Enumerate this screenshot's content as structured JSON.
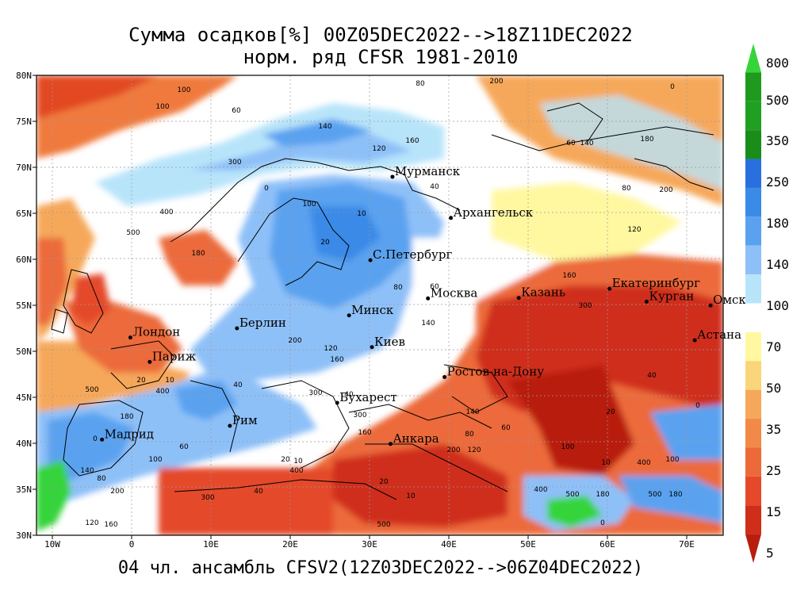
{
  "title_line1": "Сумма осадков[%] 00Z05DEC2022-->18Z11DEC2022",
  "title_line2": "норм. ряд CFSR 1981-2010",
  "footer": "04 чл. ансамбль CFSV2(12Z03DEC2022-->06Z04DEC2022)",
  "lat_labels": [
    "80N",
    "75N",
    "70N",
    "65N",
    "60N",
    "55N",
    "50N",
    "45N",
    "40N",
    "35N",
    "30N"
  ],
  "lon_labels": [
    "10W",
    "0",
    "10E",
    "20E",
    "30E",
    "40E",
    "50E",
    "60E",
    "70E"
  ],
  "colorbar": {
    "labels": [
      "800",
      "500",
      "350",
      "250",
      "180",
      "140",
      "100",
      "70",
      "50",
      "35",
      "25",
      "15",
      "5"
    ],
    "colors": [
      "#35d43a",
      "#1f9a1f",
      "#20a020",
      "#1a8c1a",
      "#2a6fe0",
      "#3a8ae8",
      "#5aa2f0",
      "#8ec0f8",
      "#b8e4fa",
      "#ffffff",
      "#fff8a0",
      "#fbd57a",
      "#f6a85a",
      "#f18a48",
      "#ec6a3a",
      "#e44a2a",
      "#cf2e1a",
      "#b81e10"
    ]
  },
  "cities": [
    {
      "name": "Мурманск",
      "lon": 33.1,
      "lat": 68.97
    },
    {
      "name": "Архангельск",
      "lon": 40.5,
      "lat": 64.5
    },
    {
      "name": "С.Петербург",
      "lon": 30.3,
      "lat": 59.9
    },
    {
      "name": "Москва",
      "lon": 37.6,
      "lat": 55.75
    },
    {
      "name": "Казань",
      "lon": 49.1,
      "lat": 55.8
    },
    {
      "name": "Екатеринбург",
      "lon": 60.6,
      "lat": 56.8
    },
    {
      "name": "Курган",
      "lon": 65.3,
      "lat": 55.4
    },
    {
      "name": "Омск",
      "lon": 73.4,
      "lat": 54.98
    },
    {
      "name": "Астана",
      "lon": 71.4,
      "lat": 51.2
    },
    {
      "name": "Минск",
      "lon": 27.6,
      "lat": 53.9
    },
    {
      "name": "Киев",
      "lon": 30.5,
      "lat": 50.45
    },
    {
      "name": "Берлин",
      "lon": 13.4,
      "lat": 52.5
    },
    {
      "name": "Лондон",
      "lon": -0.1,
      "lat": 51.5
    },
    {
      "name": "Париж",
      "lon": 2.35,
      "lat": 48.85
    },
    {
      "name": "Ростов-на-Дону",
      "lon": 39.7,
      "lat": 47.2
    },
    {
      "name": "Бухарест",
      "lon": 26.1,
      "lat": 44.4
    },
    {
      "name": "Рим",
      "lon": 12.5,
      "lat": 41.9
    },
    {
      "name": "Мадрид",
      "lon": -3.7,
      "lat": 40.4
    },
    {
      "name": "Анкара",
      "lon": 32.85,
      "lat": 39.93
    }
  ],
  "contour_labels": [
    "100",
    "60",
    "140",
    "80",
    "200",
    "120",
    "160",
    "300",
    "40",
    "20",
    "10",
    "400",
    "500",
    "180",
    "0"
  ]
}
